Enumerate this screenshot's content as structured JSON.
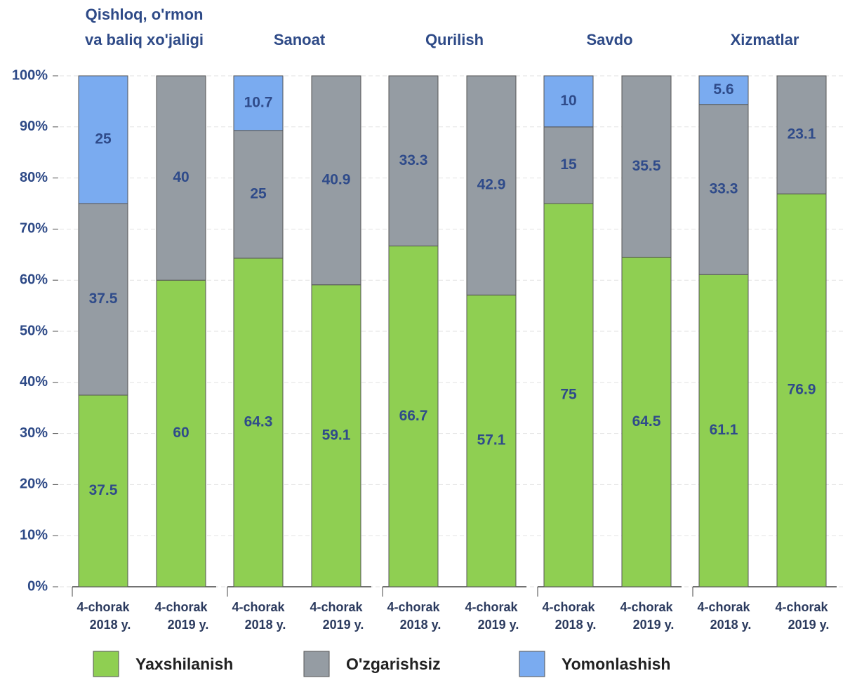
{
  "chart_data": {
    "type": "bar",
    "stacked": true,
    "panels": [
      {
        "title": [
          "Qishloq, o'rmon",
          "va baliq xo'jaligi"
        ]
      },
      {
        "title": [
          "Sanoat"
        ]
      },
      {
        "title": [
          "Qurilish"
        ]
      },
      {
        "title": [
          "Savdo"
        ]
      },
      {
        "title": [
          "Xizmatlar"
        ]
      }
    ],
    "categories": [
      [
        "4-chorak",
        "2018 y."
      ],
      [
        "4-chorak",
        "2019 y."
      ],
      [
        "4-chorak",
        "2018 y."
      ],
      [
        "4-chorak",
        "2019 y."
      ],
      [
        "4-chorak",
        "2018 y."
      ],
      [
        "4-chorak",
        "2019 y."
      ],
      [
        "4-chorak",
        "2018 y."
      ],
      [
        "4-chorak",
        "2019 y."
      ],
      [
        "4-chorak",
        "2018 y."
      ],
      [
        "4-chorak",
        "2019 y."
      ]
    ],
    "series": [
      {
        "name": "Yaxshilanish",
        "color": "#8fcf52",
        "values": [
          37.5,
          60,
          64.3,
          59.1,
          66.7,
          57.1,
          75,
          64.5,
          61.1,
          76.9
        ]
      },
      {
        "name": "O'zgarishsiz",
        "color": "#959ca3",
        "values": [
          37.5,
          40,
          25,
          40.9,
          33.3,
          42.9,
          15,
          35.5,
          33.3,
          23.1
        ]
      },
      {
        "name": "Yomonlashish",
        "color": "#7aabf0",
        "values": [
          25,
          null,
          10.7,
          null,
          null,
          null,
          10,
          null,
          5.6,
          null
        ]
      }
    ],
    "ylim": [
      0,
      100
    ],
    "yticks": [
      {
        "value": 0,
        "label": "0%"
      },
      {
        "value": 10,
        "label": "10%"
      },
      {
        "value": 20,
        "label": "20%"
      },
      {
        "value": 30,
        "label": "30%"
      },
      {
        "value": 40,
        "label": "40%"
      },
      {
        "value": 50,
        "label": "50%"
      },
      {
        "value": 60,
        "label": "60%"
      },
      {
        "value": 70,
        "label": "70%"
      },
      {
        "value": 80,
        "label": "80%"
      },
      {
        "value": 90,
        "label": "90%"
      },
      {
        "value": 100,
        "label": "100%"
      }
    ],
    "grid": true
  }
}
